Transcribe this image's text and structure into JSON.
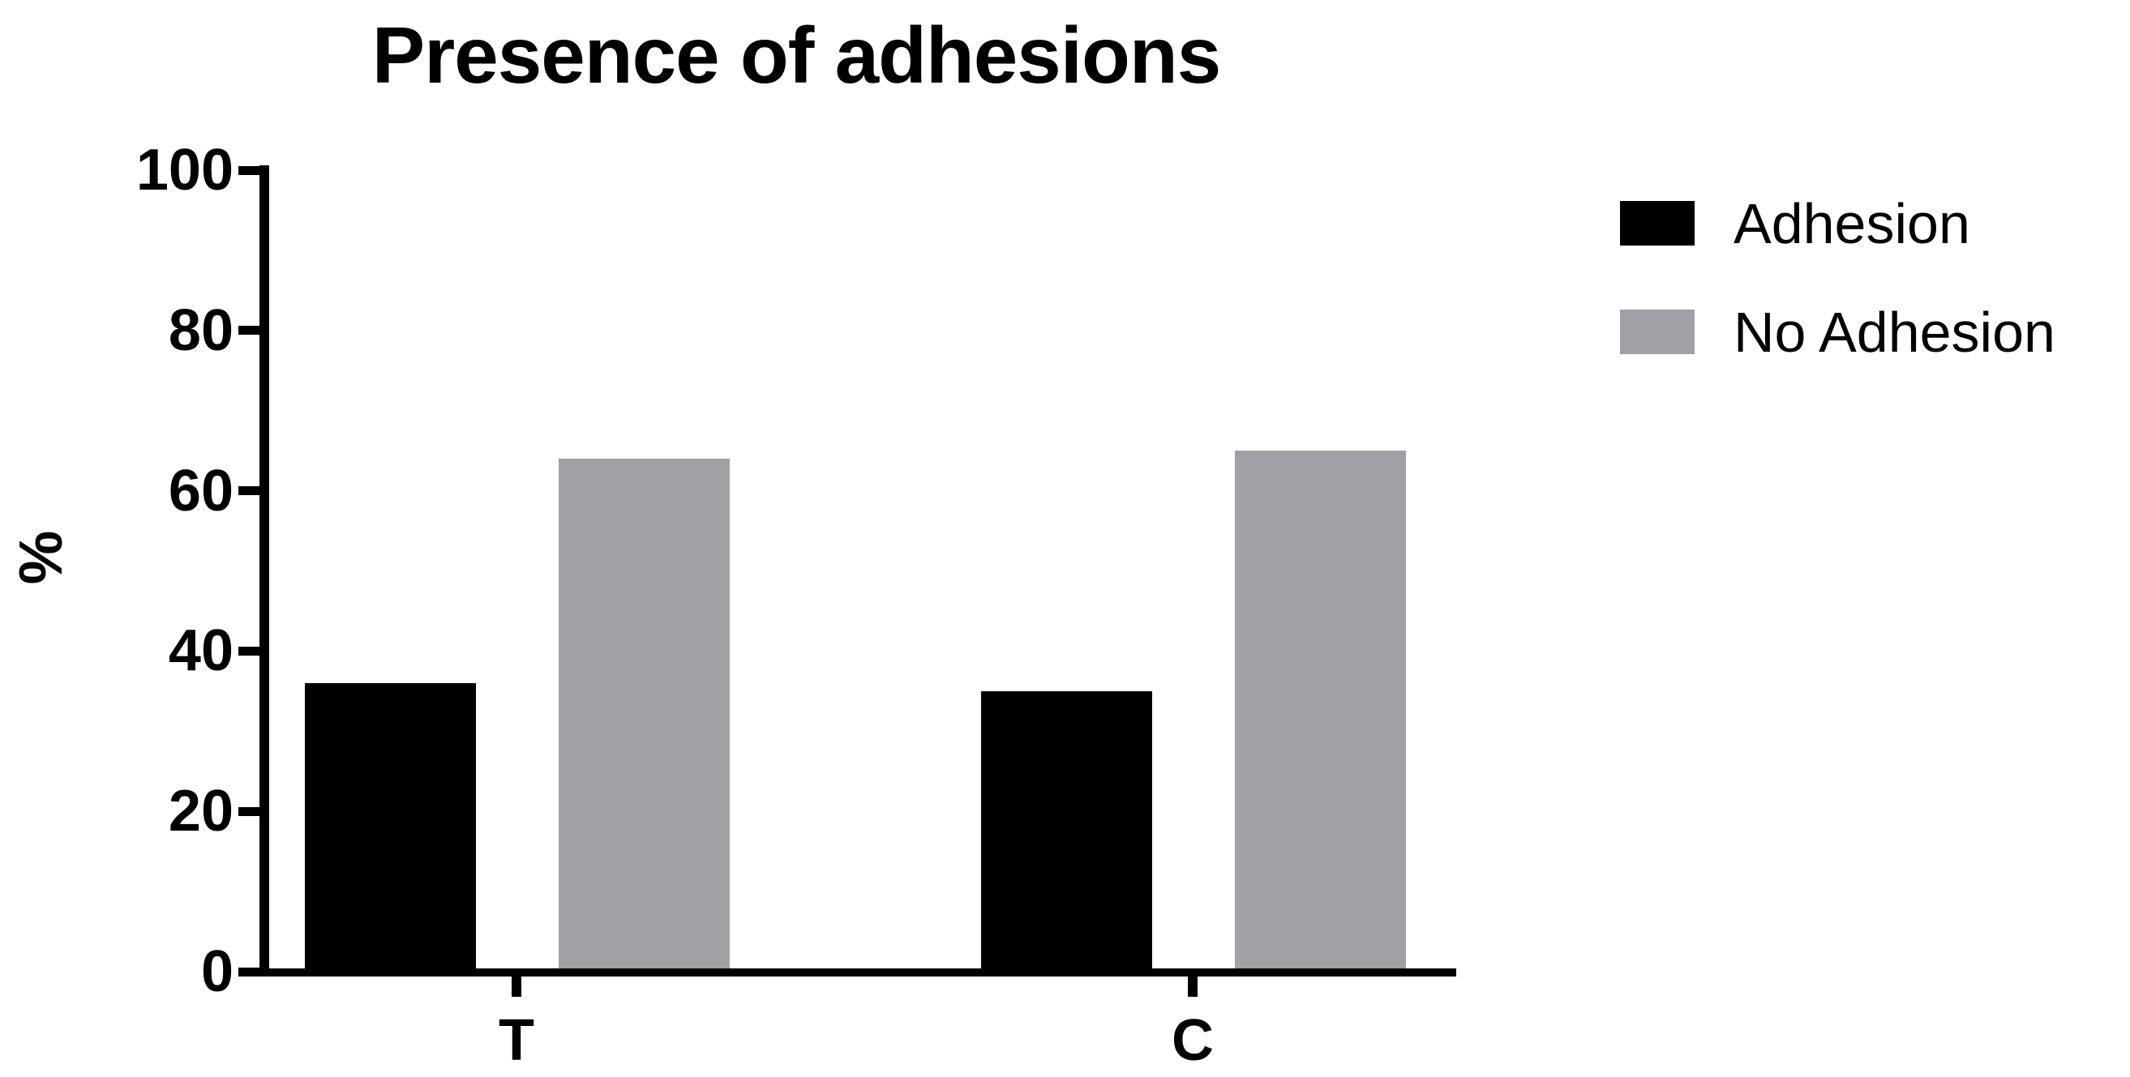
{
  "chart_data": {
    "type": "bar",
    "title": "Presence of adhesions",
    "ylabel": "%",
    "xlabel": "",
    "ylim": [
      0,
      100
    ],
    "yticks": [
      0,
      20,
      40,
      60,
      80,
      100
    ],
    "categories": [
      "T",
      "C"
    ],
    "series": [
      {
        "name": "Adhesion",
        "color": "#000000",
        "values": [
          36,
          35
        ]
      },
      {
        "name": "No Adhesion",
        "color": "#a2a0a6",
        "values": [
          64,
          65
        ]
      }
    ],
    "legend_position": "right",
    "grid": false,
    "axis_color": "#000000",
    "background_color": "#ffffff"
  }
}
